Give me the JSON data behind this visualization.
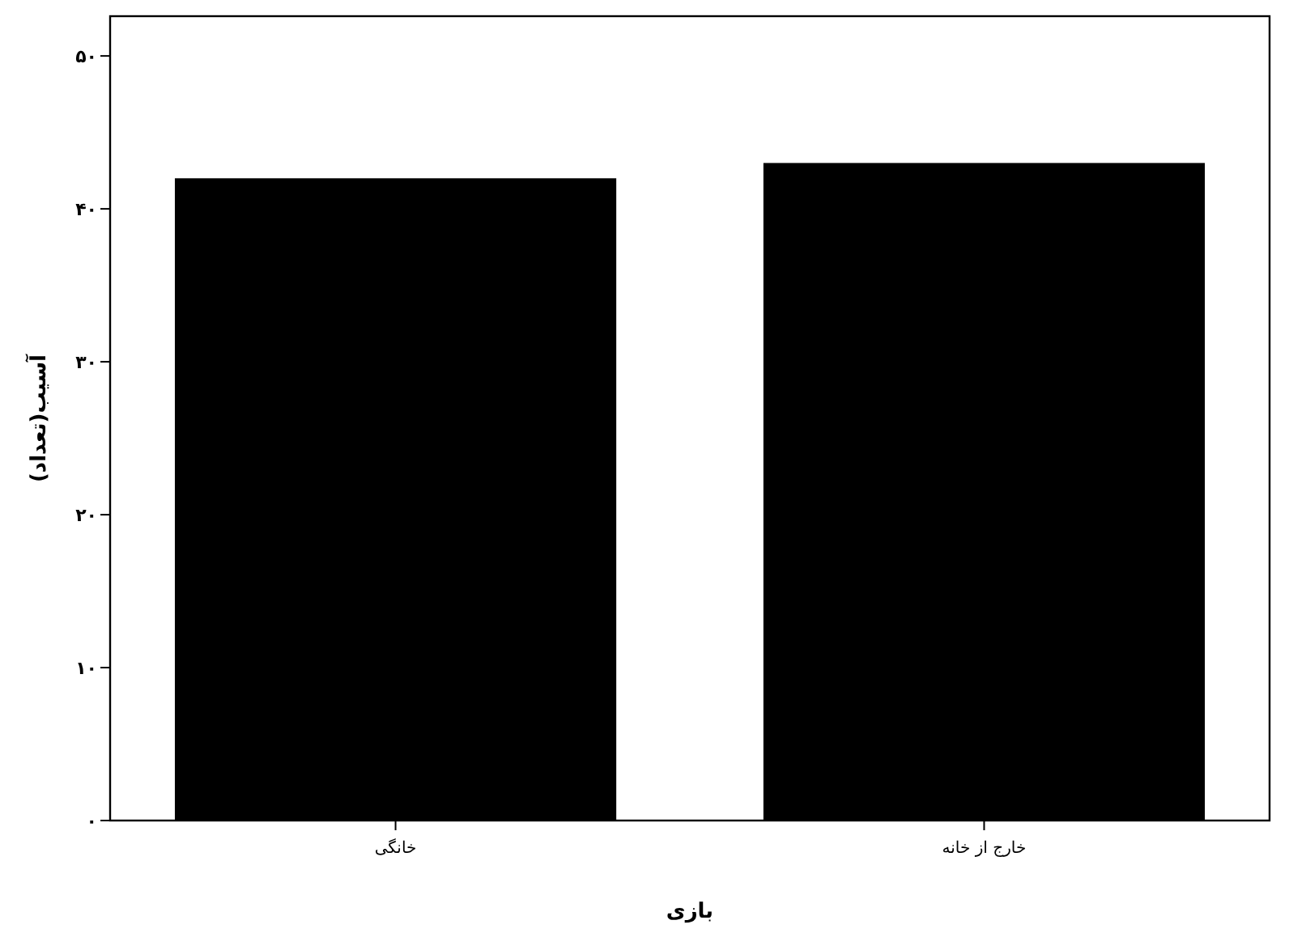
{
  "chart_data": {
    "type": "bar",
    "xlabel": "بازی",
    "ylabel": "آسیب(تعداد)",
    "categories": [
      "خانگی",
      "خارج از خانه"
    ],
    "values": [
      42,
      43
    ],
    "color": "#000000",
    "ylim": [
      0,
      52.6
    ],
    "yticks": [
      {
        "value": 0,
        "label": "۰"
      },
      {
        "value": 10,
        "label": "۱۰"
      },
      {
        "value": 20,
        "label": "۲۰"
      },
      {
        "value": 30,
        "label": "۳۰"
      },
      {
        "value": 40,
        "label": "۴۰"
      },
      {
        "value": 50,
        "label": "۵۰"
      }
    ],
    "grid": false
  }
}
